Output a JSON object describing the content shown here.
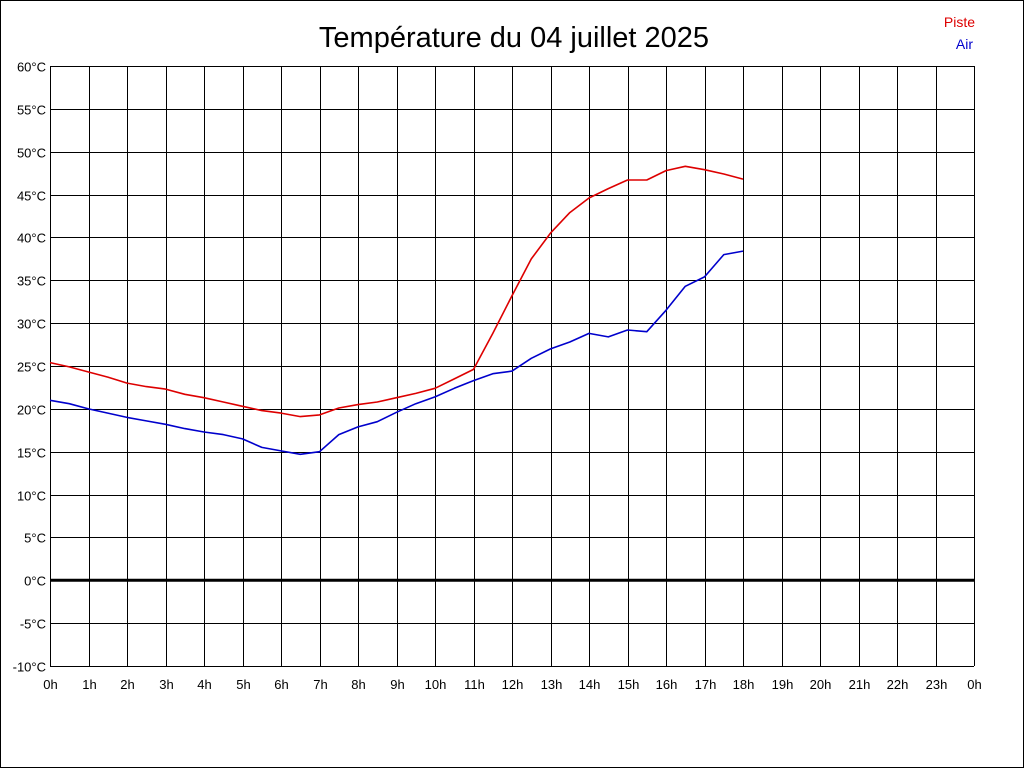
{
  "chart_data": {
    "type": "line",
    "title": "Température du 04 juillet 2025",
    "x_tick_labels": [
      "0h",
      "1h",
      "2h",
      "3h",
      "4h",
      "5h",
      "6h",
      "7h",
      "8h",
      "9h",
      "10h",
      "11h",
      "12h",
      "13h",
      "14h",
      "15h",
      "16h",
      "17h",
      "18h",
      "19h",
      "20h",
      "21h",
      "22h",
      "23h",
      "0h"
    ],
    "y_tick_labels": [
      "60°C",
      "55°C",
      "50°C",
      "45°C",
      "40°C",
      "35°C",
      "30°C",
      "25°C",
      "20°C",
      "15°C",
      "10°C",
      "5°C",
      "0°C",
      "-5°C",
      "-10°C"
    ],
    "xlim": [
      0,
      24
    ],
    "ylim": [
      -10,
      60
    ],
    "grid": true,
    "zero_line": true,
    "legend_position": "top-right",
    "x_unit": "hours",
    "series": [
      {
        "name": "Piste",
        "color": "#dd0000",
        "x": [
          0,
          0.5,
          1,
          1.5,
          2,
          2.5,
          3,
          3.5,
          4,
          4.5,
          5,
          5.5,
          6,
          6.5,
          7,
          7.5,
          8,
          8.5,
          9,
          9.5,
          10,
          10.5,
          11,
          11.5,
          12,
          12.5,
          13,
          13.5,
          14,
          14.5,
          15,
          15.5,
          16,
          16.5,
          17,
          17.5,
          18
        ],
        "y": [
          25.4,
          24.9,
          24.3,
          23.7,
          23.0,
          22.6,
          22.3,
          21.7,
          21.3,
          20.8,
          20.3,
          19.8,
          19.5,
          19.1,
          19.3,
          20.1,
          20.5,
          20.8,
          21.3,
          21.8,
          22.4,
          23.5,
          24.6,
          28.8,
          33.2,
          37.5,
          40.5,
          42.9,
          44.6,
          45.7,
          46.7,
          46.7,
          47.8,
          48.3,
          47.9,
          47.4,
          46.8
        ]
      },
      {
        "name": "Air",
        "color": "#0000cc",
        "x": [
          0,
          0.5,
          1,
          1.5,
          2,
          2.5,
          3,
          3.5,
          4,
          4.5,
          5,
          5.5,
          6,
          6.5,
          7,
          7.5,
          8,
          8.5,
          9,
          9.5,
          10,
          10.5,
          11,
          11.5,
          12,
          12.5,
          13,
          13.5,
          14,
          14.5,
          15,
          15.5,
          16,
          16.5,
          17,
          17.5,
          18
        ],
        "y": [
          21.0,
          20.6,
          20.0,
          19.5,
          19.0,
          18.6,
          18.2,
          17.7,
          17.3,
          17.0,
          16.5,
          15.5,
          15.1,
          14.7,
          15.0,
          17.0,
          17.9,
          18.5,
          19.6,
          20.6,
          21.4,
          22.4,
          23.3,
          24.1,
          24.4,
          25.9,
          27.0,
          27.8,
          28.8,
          28.4,
          29.2,
          29.0,
          31.5,
          34.3,
          35.4,
          38.0,
          38.4
        ]
      }
    ]
  }
}
